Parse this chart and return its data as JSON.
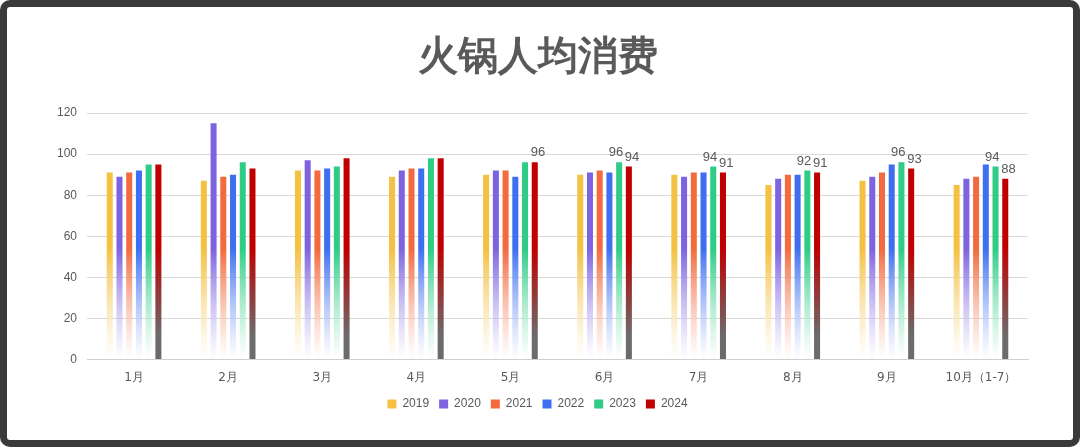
{
  "chart_data": {
    "type": "bar",
    "title": "火锅人均消费",
    "categories": [
      "1月",
      "2月",
      "3月",
      "4月",
      "5月",
      "6月",
      "7月",
      "8月",
      "9月",
      "10月（1-7）"
    ],
    "series": [
      {
        "name": "2019",
        "color": "#f4c142",
        "values": [
          91,
          87,
          92,
          89,
          90,
          90,
          90,
          85,
          87,
          85
        ]
      },
      {
        "name": "2020",
        "color": "#7d63e0",
        "values": [
          89,
          115,
          97,
          92,
          92,
          91,
          89,
          88,
          89,
          88
        ]
      },
      {
        "name": "2021",
        "color": "#f26a3d",
        "values": [
          91,
          89,
          92,
          93,
          92,
          92,
          91,
          90,
          91,
          89
        ]
      },
      {
        "name": "2022",
        "color": "#3d6ff0",
        "values": [
          92,
          90,
          93,
          93,
          89,
          91,
          91,
          90,
          95,
          95
        ]
      },
      {
        "name": "2023",
        "color": "#2ecc85",
        "values": [
          95,
          96,
          94,
          98,
          96,
          96,
          94,
          92,
          96,
          94
        ],
        "value_labels": [
          null,
          null,
          null,
          null,
          null,
          "96",
          "94",
          "92",
          "96",
          "94"
        ]
      },
      {
        "name": "2024",
        "color": "#c00000",
        "values": [
          95,
          93,
          98,
          98,
          96,
          94,
          91,
          91,
          93,
          88
        ],
        "value_labels": [
          null,
          null,
          null,
          null,
          "96",
          "94",
          "91",
          "91",
          "93",
          "88"
        ]
      }
    ],
    "ylim": [
      0,
      120
    ],
    "yticks": [
      0,
      20,
      40,
      60,
      80,
      100,
      120
    ],
    "grid": "y",
    "legend": "bottom"
  }
}
